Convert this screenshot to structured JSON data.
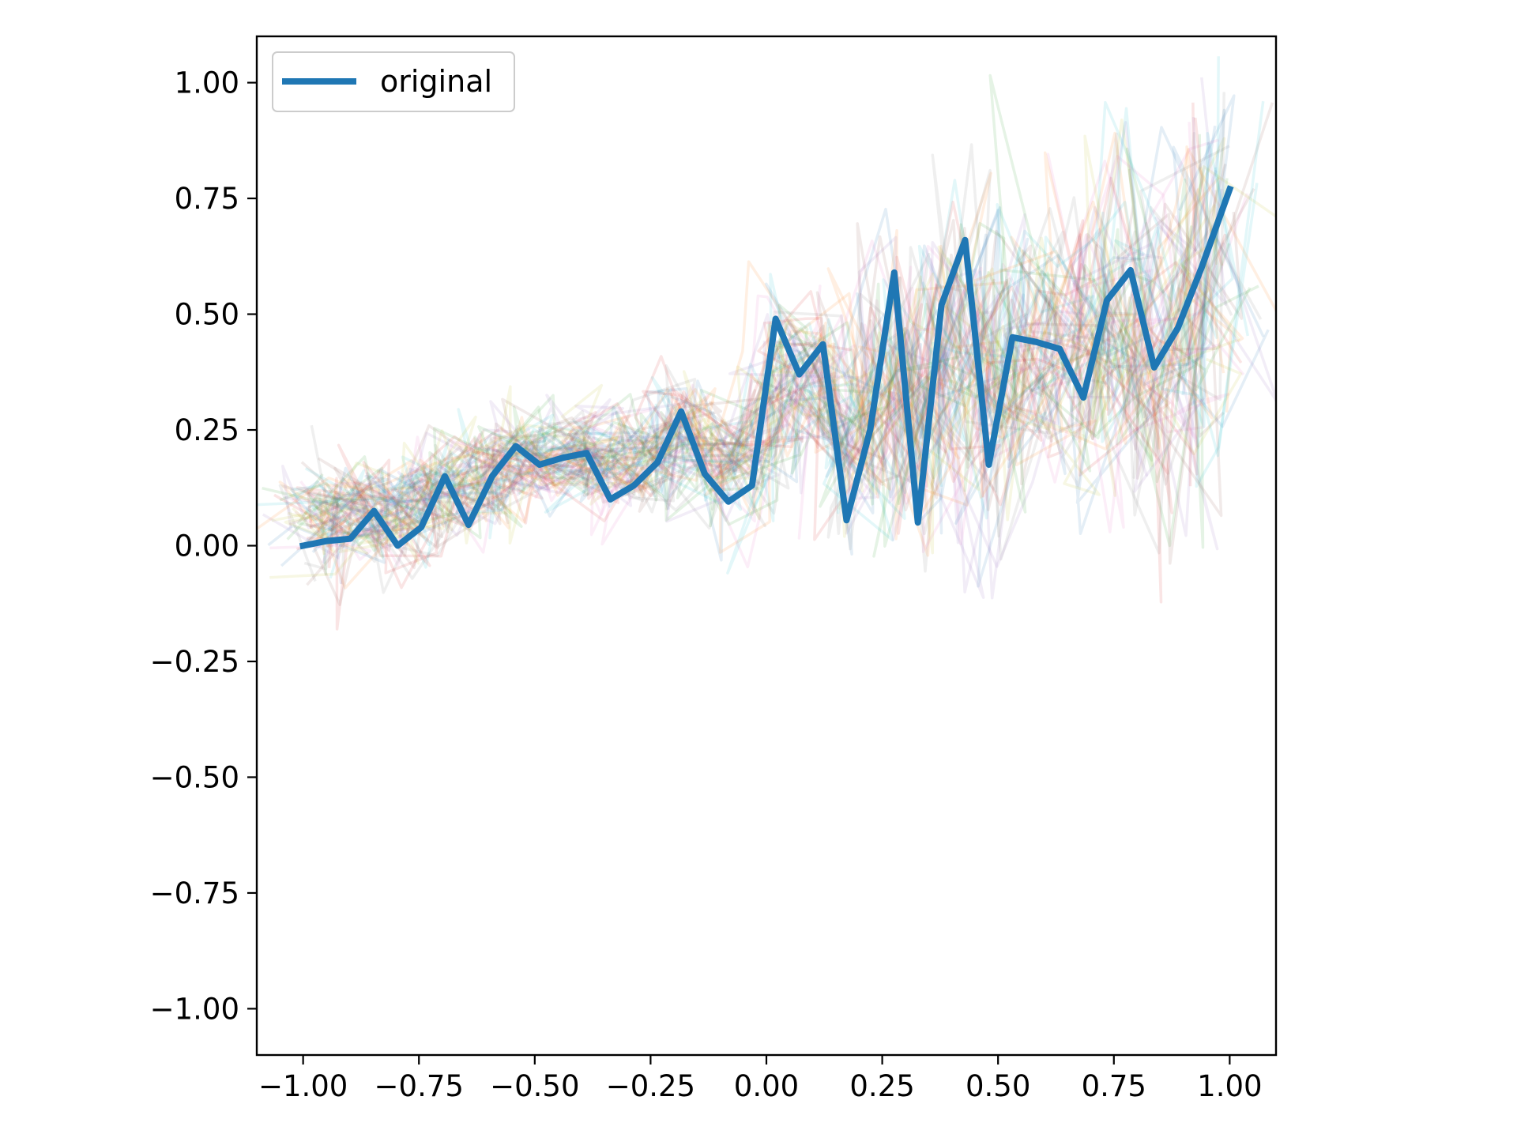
{
  "chart_data": {
    "type": "line",
    "title": "",
    "xlabel": "",
    "ylabel": "",
    "xlim": [
      -1.1,
      1.1
    ],
    "ylim": [
      -1.1,
      1.1
    ],
    "x_ticks": [
      -1.0,
      -0.75,
      -0.5,
      -0.25,
      0.0,
      0.25,
      0.5,
      0.75,
      1.0
    ],
    "x_tick_labels": [
      "−1.00",
      "−0.75",
      "−0.50",
      "−0.25",
      "0.00",
      "0.25",
      "0.50",
      "0.75",
      "1.00"
    ],
    "y_ticks": [
      1.0,
      0.75,
      0.5,
      0.25,
      0.0,
      -0.25,
      -0.5,
      -0.75,
      -1.0
    ],
    "y_tick_labels": [
      "1.00",
      "0.75",
      "0.50",
      "0.25",
      "0.00",
      "−0.25",
      "−0.50",
      "−0.75",
      "−1.00"
    ],
    "grid": false,
    "legend": {
      "position": "upper-left",
      "entries": [
        "original"
      ]
    },
    "series": [
      {
        "name": "original",
        "color": "#1f77b4",
        "x": [
          -1.0,
          -0.949,
          -0.898,
          -0.847,
          -0.796,
          -0.745,
          -0.694,
          -0.643,
          -0.592,
          -0.541,
          -0.49,
          -0.439,
          -0.388,
          -0.337,
          -0.286,
          -0.235,
          -0.184,
          -0.133,
          -0.082,
          -0.031,
          0.02,
          0.071,
          0.122,
          0.173,
          0.224,
          0.276,
          0.327,
          0.378,
          0.429,
          0.48,
          0.531,
          0.582,
          0.633,
          0.684,
          0.735,
          0.786,
          0.837,
          0.888,
          0.939,
          1.0
        ],
        "y": [
          0.0,
          0.01,
          0.015,
          0.075,
          0.0,
          0.04,
          0.15,
          0.045,
          0.15,
          0.215,
          0.175,
          0.19,
          0.2,
          0.1,
          0.13,
          0.18,
          0.29,
          0.155,
          0.095,
          0.13,
          0.49,
          0.37,
          0.435,
          0.055,
          0.25,
          0.59,
          0.05,
          0.52,
          0.66,
          0.175,
          0.45,
          0.44,
          0.425,
          0.32,
          0.53,
          0.595,
          0.385,
          0.47,
          0.6,
          0.77
        ]
      }
    ],
    "background_traces": {
      "description_visible": "many faint multicolored jittered copies of the series",
      "count": 60,
      "opacity": 0.12,
      "palette": [
        "#1f77b4",
        "#ff7f0e",
        "#2ca02c",
        "#d62728",
        "#9467bd",
        "#8c564b",
        "#e377c2",
        "#7f7f7f",
        "#bcbd22",
        "#17becf"
      ]
    }
  }
}
